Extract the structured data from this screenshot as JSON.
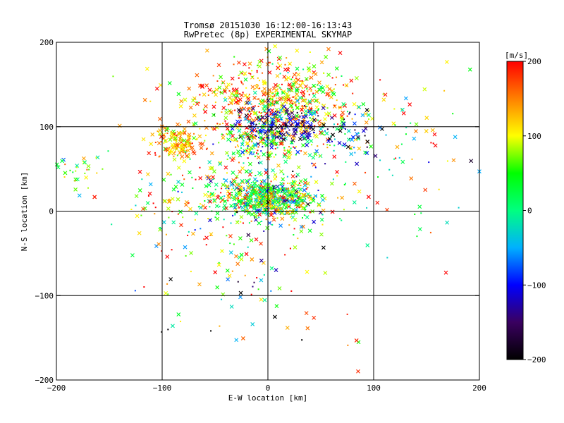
{
  "chart_data": {
    "type": "scatter",
    "title_lines": [
      "Tromsø 20151030 16:12:00-16:13:43",
      "RwPretec (8p) EXPERIMENTAL SKYMAP"
    ],
    "xlabel": "E-W location [km]",
    "ylabel": "N-S location [km]",
    "xlim": [
      -200,
      200
    ],
    "ylim": [
      -200,
      200
    ],
    "xticks": [
      -200,
      -100,
      0,
      100,
      200
    ],
    "yticks": [
      -200,
      -100,
      0,
      100,
      200
    ],
    "xtick_labels": [
      "−200",
      "−100",
      "0",
      "100",
      "200"
    ],
    "ytick_labels": [
      "−200",
      "−100",
      "0",
      "100",
      "200"
    ],
    "grid_lines": [
      -100,
      0,
      100
    ],
    "grid": true,
    "markers": [
      "cross",
      "dot"
    ],
    "colorbar": {
      "label": "[m/s]",
      "range": [
        -200,
        200
      ],
      "ticks": [
        200,
        100,
        0,
        -100,
        -200
      ],
      "tick_labels": [
        "200",
        "100",
        "0",
        "−100",
        "−200"
      ],
      "colormap": [
        "#000000",
        "#3a0060",
        "#0000ff",
        "#00b0ff",
        "#00ff80",
        "#00ff00",
        "#ffff00",
        "#ff8000",
        "#ff0000"
      ]
    },
    "clusters": [
      {
        "cx": 0,
        "cy": 15,
        "sx": 25,
        "sy": 12,
        "n": 700,
        "vmean": 40,
        "vsd": 90
      },
      {
        "cx": -5,
        "cy": 130,
        "sx": 45,
        "sy": 25,
        "n": 450,
        "vmean": 140,
        "vsd": 60
      },
      {
        "cx": 20,
        "cy": 130,
        "sx": 25,
        "sy": 25,
        "n": 200,
        "vmean": 100,
        "vsd": 60
      },
      {
        "cx": 10,
        "cy": 100,
        "sx": 20,
        "sy": 12,
        "n": 180,
        "vmean": -120,
        "vsd": 50
      },
      {
        "cx": -85,
        "cy": 80,
        "sx": 12,
        "sy": 10,
        "n": 160,
        "vmean": 130,
        "vsd": 40
      },
      {
        "cx": -10,
        "cy": 80,
        "sx": 20,
        "sy": 12,
        "n": 160,
        "vmean": 60,
        "vsd": 70
      },
      {
        "cx": 60,
        "cy": 90,
        "sx": 30,
        "sy": 20,
        "n": 120,
        "vmean": -40,
        "vsd": 110
      },
      {
        "cx": -180,
        "cy": 42,
        "sx": 15,
        "sy": 12,
        "n": 35,
        "vmean": 60,
        "vsd": 60
      },
      {
        "cx": 140,
        "cy": 60,
        "sx": 50,
        "sy": 55,
        "n": 90,
        "vmean": 90,
        "vsd": 110
      },
      {
        "cx": -40,
        "cy": -20,
        "sx": 50,
        "sy": 40,
        "n": 140,
        "vmean": 100,
        "vsd": 100
      },
      {
        "cx": -30,
        "cy": -100,
        "sx": 50,
        "sy": 35,
        "n": 40,
        "vmean": -20,
        "vsd": 150
      },
      {
        "cx": 70,
        "cy": -150,
        "sx": 15,
        "sy": 20,
        "n": 6,
        "vmean": 180,
        "vsd": 20
      },
      {
        "cx": -60,
        "cy": 30,
        "sx": 30,
        "sy": 15,
        "n": 60,
        "vmean": 80,
        "vsd": 100
      }
    ]
  }
}
